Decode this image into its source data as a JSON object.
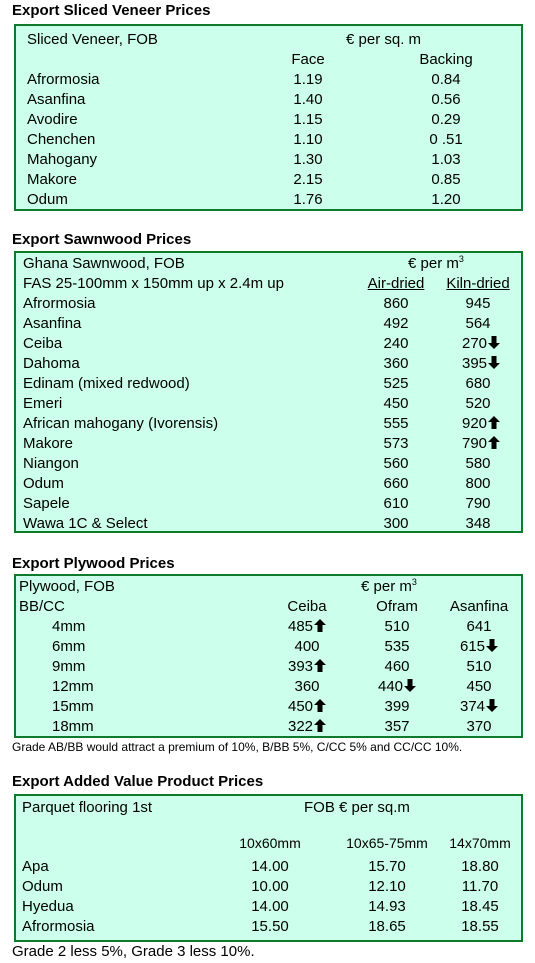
{
  "veneer": {
    "heading": "Export Sliced Veneer Prices",
    "label": "Sliced Veneer, FOB",
    "unit": "€ per sq. m",
    "col1": "Face",
    "col2": "Backing",
    "rows": [
      {
        "name": "Afrormosia",
        "face": "1.19",
        "backing": "0.84"
      },
      {
        "name": "Asanfina",
        "face": "1.40",
        "backing": "0.56"
      },
      {
        "name": "Avodire",
        "face": "1.15",
        "backing": "0.29"
      },
      {
        "name": "Chenchen",
        "face": "1.10",
        "backing": "0 .51"
      },
      {
        "name": "Mahogany",
        "face": "1.30",
        "backing": "1.03"
      },
      {
        "name": "Makore",
        "face": "2.15",
        "backing": "0.85"
      },
      {
        "name": "Odum",
        "face": "1.76",
        "backing": "1.20"
      }
    ]
  },
  "sawnwood": {
    "heading": "Export Sawnwood Prices",
    "label": "Ghana Sawnwood, FOB",
    "unit_prefix": "€ per m",
    "unit_sup": "3",
    "spec": "FAS 25-100mm x 150mm up x 2.4m up",
    "col1": "Air-dried",
    "col2": "Kiln-dried",
    "rows": [
      {
        "name": "Afrormosia",
        "air": "860",
        "kiln": "945",
        "kiln_trend": ""
      },
      {
        "name": "Asanfina",
        "air": "492",
        "kiln": "564",
        "kiln_trend": ""
      },
      {
        "name": "Ceiba",
        "air": "240",
        "kiln": "270",
        "kiln_trend": "down"
      },
      {
        "name": "Dahoma",
        "air": "360",
        "kiln": "395",
        "kiln_trend": "down"
      },
      {
        "name": "Edinam (mixed redwood)",
        "air": "525",
        "kiln": "680",
        "kiln_trend": ""
      },
      {
        "name": "Emeri",
        "air": "450",
        "kiln": "520",
        "kiln_trend": ""
      },
      {
        "name": "African mahogany (Ivorensis)",
        "air": "555",
        "kiln": "920",
        "kiln_trend": "up"
      },
      {
        "name": "Makore",
        "air": "573",
        "kiln": "790",
        "kiln_trend": "up"
      },
      {
        "name": "Niangon",
        "air": "560",
        "kiln": "580",
        "kiln_trend": ""
      },
      {
        "name": "Odum",
        "air": "660",
        "kiln": "800",
        "kiln_trend": ""
      },
      {
        "name": "Sapele",
        "air": "610",
        "kiln": "790",
        "kiln_trend": ""
      },
      {
        "name": "Wawa 1C & Select",
        "air": "300",
        "kiln": "348",
        "kiln_trend": ""
      }
    ]
  },
  "plywood": {
    "heading": "Export Plywood Prices",
    "label": "Plywood, FOB",
    "unit_prefix": "€ per m",
    "unit_sup": "3",
    "grade": "BB/CC",
    "col1": "Ceiba",
    "col2": "Ofram",
    "col3": "Asanfina",
    "rows": [
      {
        "size": "4mm",
        "ceiba": "485",
        "ceiba_trend": "up",
        "ofram": "510",
        "ofram_trend": "",
        "asanfina": "641",
        "asanfina_trend": ""
      },
      {
        "size": "6mm",
        "ceiba": "400",
        "ceiba_trend": "",
        "ofram": "535",
        "ofram_trend": "",
        "asanfina": "615",
        "asanfina_trend": "down"
      },
      {
        "size": "9mm",
        "ceiba": "393",
        "ceiba_trend": "up",
        "ofram": "460",
        "ofram_trend": "",
        "asanfina": "510",
        "asanfina_trend": ""
      },
      {
        "size": "12mm",
        "ceiba": "360",
        "ceiba_trend": "",
        "ofram": "440",
        "ofram_trend": "down",
        "asanfina": "450",
        "asanfina_trend": ""
      },
      {
        "size": "15mm",
        "ceiba": "450",
        "ceiba_trend": "up",
        "ofram": "399",
        "ofram_trend": "",
        "asanfina": "374",
        "asanfina_trend": "down"
      },
      {
        "size": "18mm",
        "ceiba": "322",
        "ceiba_trend": "up",
        "ofram": "357",
        "ofram_trend": "",
        "asanfina": "370",
        "asanfina_trend": ""
      }
    ],
    "note": "Grade AB/BB would attract a premium of 10%, B/BB 5%, C/CC 5% and CC/CC 10%."
  },
  "added_value": {
    "heading": "Export Added Value Product Prices",
    "label": "Parquet flooring 1st",
    "unit": "FOB € per sq.m",
    "col1": "10x60mm",
    "col2": "10x65-75mm",
    "col3": "14x70mm",
    "rows": [
      {
        "name": "Apa",
        "v1": "14.00",
        "v2": "15.70",
        "v3": "18.80"
      },
      {
        "name": "Odum",
        "v1": "10.00",
        "v2": "12.10",
        "v3": "11.70"
      },
      {
        "name": "Hyedua",
        "v1": "14.00",
        "v2": "14.93",
        "v3": "18.45"
      },
      {
        "name": "Afrormosia",
        "v1": "15.50",
        "v2": "18.65",
        "v3": "18.55"
      }
    ],
    "note": "Grade 2 less 5%, Grade 3 less 10%."
  },
  "icons": {
    "up": "arrow-up-icon",
    "down": "arrow-down-icon"
  },
  "colors": {
    "box_fill": "#ccffec",
    "box_border": "#0f7a2a"
  }
}
